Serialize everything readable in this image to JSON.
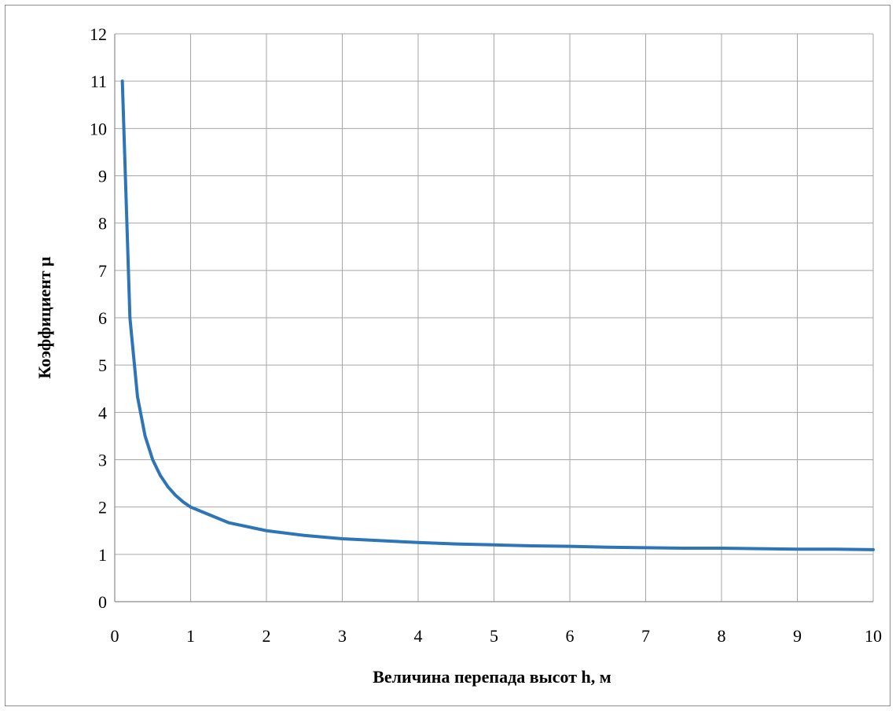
{
  "chart_data": {
    "type": "line",
    "title": "",
    "xlabel": "Величина перепада высот h, м",
    "ylabel": "Коэффициент μ",
    "xlim": [
      0,
      10
    ],
    "ylim": [
      0,
      12
    ],
    "x_ticks": [
      "0",
      "1",
      "2",
      "3",
      "4",
      "5",
      "6",
      "7",
      "8",
      "9",
      "10"
    ],
    "y_ticks": [
      "0",
      "1",
      "2",
      "3",
      "4",
      "5",
      "6",
      "7",
      "8",
      "9",
      "10",
      "11",
      "12"
    ],
    "grid": true,
    "legend": "none",
    "series": [
      {
        "color": "#2e75b6",
        "x": [
          0.1,
          0.2,
          0.3,
          0.4,
          0.5,
          0.6,
          0.7,
          0.8,
          0.9,
          1.0,
          1.5,
          2.0,
          2.5,
          3.0,
          3.5,
          4.0,
          4.5,
          5.0,
          5.5,
          6.0,
          6.5,
          7.0,
          7.5,
          8.0,
          8.5,
          9.0,
          9.5,
          10.0
        ],
        "y": [
          11.0,
          6.0,
          4.33,
          3.5,
          3.0,
          2.67,
          2.43,
          2.25,
          2.11,
          2.0,
          1.67,
          1.5,
          1.4,
          1.33,
          1.29,
          1.25,
          1.22,
          1.2,
          1.18,
          1.17,
          1.15,
          1.14,
          1.13,
          1.13,
          1.12,
          1.11,
          1.11,
          1.1
        ]
      }
    ]
  }
}
